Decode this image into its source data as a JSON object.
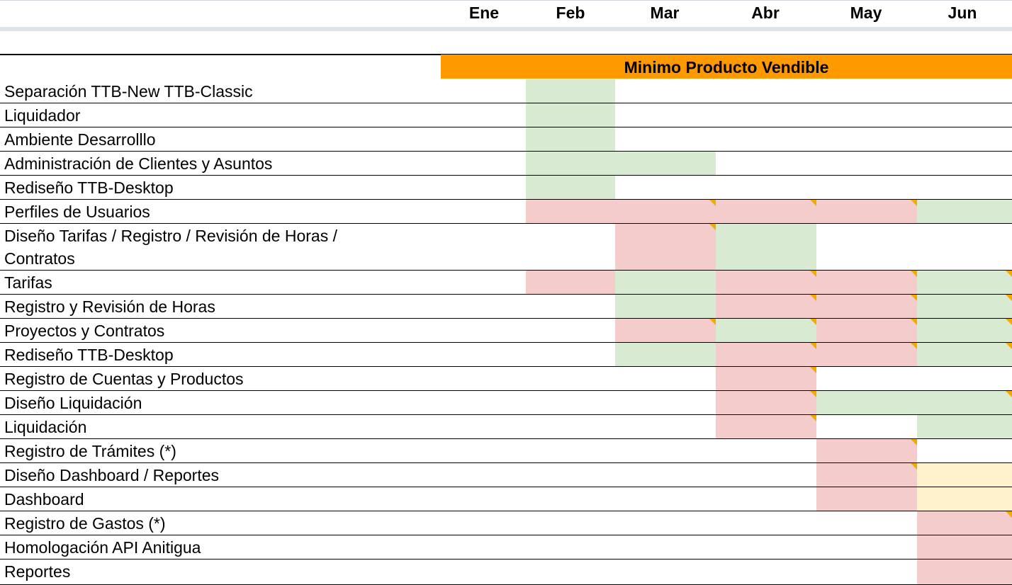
{
  "months": [
    "Ene",
    "Feb",
    "Mar",
    "Abr",
    "May",
    "Jun"
  ],
  "banner": "Minimo Producto Vendible",
  "status_colors": {
    "g": "#d9ead3",
    "r": "#f4cccc",
    "y": "#fff2cc",
    "banner": "#ff9900",
    "comment_marker": "#f2a900"
  },
  "rows": [
    {
      "label": "Separación TTB-New TTB-Classic",
      "cells": [
        "",
        "g",
        "",
        "",
        "",
        ""
      ]
    },
    {
      "label": "Liquidador",
      "cells": [
        "",
        "g",
        "",
        "",
        "",
        ""
      ]
    },
    {
      "label": "Ambiente Desarrolllo",
      "cells": [
        "",
        "g",
        "",
        "",
        "",
        ""
      ]
    },
    {
      "label": "Administración de Clientes y Asuntos",
      "cells": [
        "",
        "g",
        "g",
        "",
        "",
        ""
      ]
    },
    {
      "label": "Rediseño TTB-Desktop",
      "cells": [
        "",
        "g",
        "",
        "",
        "",
        ""
      ]
    },
    {
      "label": "Perfiles de Usuarios",
      "cells": [
        "",
        "r",
        "r*",
        "r*",
        "r*",
        "g"
      ]
    },
    {
      "label": "Diseño Tarifas / Registro / Revisión de Horas /\nContratos",
      "cells": [
        "",
        "",
        "r*",
        "g",
        "",
        ""
      ]
    },
    {
      "label": "Tarifas",
      "cells": [
        "",
        "r",
        "g",
        "r*",
        "r*",
        "g*"
      ]
    },
    {
      "label": "Registro y Revisión de Horas",
      "cells": [
        "",
        "",
        "g",
        "r*",
        "r*",
        "g*"
      ]
    },
    {
      "label": "Proyectos y Contratos",
      "cells": [
        "",
        "",
        "r*",
        "g*",
        "r*",
        "g*"
      ]
    },
    {
      "label": "Rediseño TTB-Desktop",
      "cells": [
        "",
        "",
        "g",
        "r*",
        "r*",
        "g*"
      ]
    },
    {
      "label": "Registro de Cuentas y Productos",
      "cells": [
        "",
        "",
        "",
        "r*",
        "",
        ""
      ]
    },
    {
      "label": "Diseño Liquidación",
      "cells": [
        "",
        "",
        "",
        "r*",
        "g",
        "g*"
      ]
    },
    {
      "label": "Liquidación",
      "cells": [
        "",
        "",
        "",
        "r*",
        "",
        "g"
      ]
    },
    {
      "label": "Registro de Trámites (*)",
      "cells": [
        "",
        "",
        "",
        "",
        "r*",
        ""
      ]
    },
    {
      "label": "Diseño Dashboard / Reportes",
      "cells": [
        "",
        "",
        "",
        "",
        "r*",
        "y"
      ]
    },
    {
      "label": "Dashboard",
      "cells": [
        "",
        "",
        "",
        "",
        "r",
        "y"
      ]
    },
    {
      "label": "Registro de Gastos (*)",
      "cells": [
        "",
        "",
        "",
        "",
        "",
        "r*"
      ]
    },
    {
      "label": "Homologación API Anitigua",
      "cells": [
        "",
        "",
        "",
        "",
        "",
        "r"
      ]
    },
    {
      "label": "Reportes",
      "cells": [
        "",
        "",
        "",
        "",
        "",
        "r"
      ]
    }
  ]
}
